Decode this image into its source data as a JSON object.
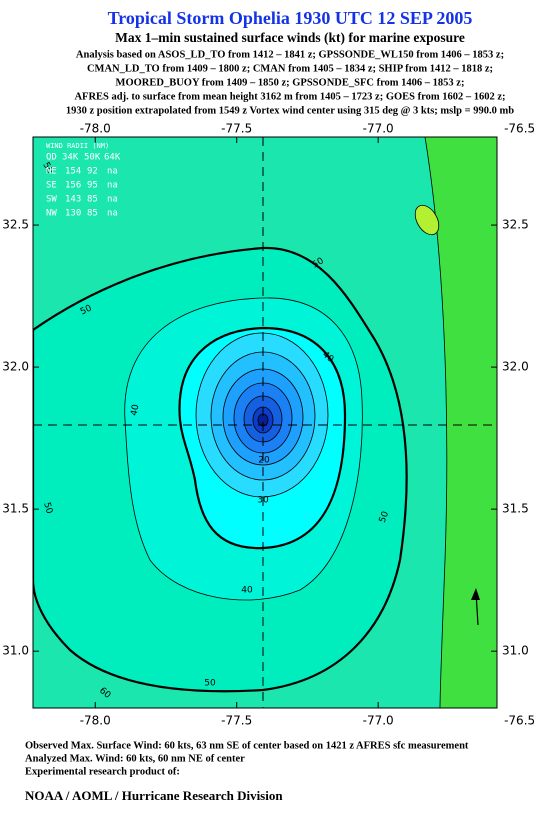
{
  "header": {
    "title": "Tropical Storm Ophelia 1930 UTC 12 SEP 2005",
    "subtitle": "Max 1–min sustained surface winds (kt) for marine exposure",
    "analysis": [
      "Analysis based on  ASOS_LD_TO from 1412 – 1841 z;  GPSSONDE_WL150 from 1406 – 1853 z;",
      "CMAN_LD_TO from 1409 – 1800 z;  CMAN from 1405 – 1834 z;  SHIP from 1412 – 1818 z;",
      "MOORED_BUOY from 1409 – 1850 z;  GPSSONDE_SFC from 1406 – 1853 z;",
      "AFRES adj. to surface from mean height 3162 m from 1405 – 1723 z;  GOES from 1602 – 1602 z;",
      "1930 z position extrapolated from 1549 z Vortex wind center using 315 deg @ 3 kts; mslp = 990.0 mb"
    ]
  },
  "map": {
    "xlim": [
      -78.22,
      -76.58
    ],
    "ylim": [
      30.8,
      32.81
    ],
    "xticks": [
      {
        "value": -78.0,
        "label": "-78.0"
      },
      -77.5,
      {
        "value": -77.0,
        "label": "-77.0"
      },
      -76.5
    ],
    "yticks": [
      {
        "value": 31.0,
        "label": "31.0"
      },
      31.5,
      {
        "value": 32.0,
        "label": "32.0"
      },
      32.5
    ],
    "wind_radii": {
      "title": "WIND RADII (NM)",
      "columns": [
        "QD",
        "34K",
        "50K",
        "64K"
      ],
      "rows": [
        [
          "NE",
          154,
          92,
          "na"
        ],
        [
          "SE",
          156,
          95,
          "na"
        ],
        [
          "SW",
          143,
          85,
          "na"
        ],
        [
          "NW",
          130,
          85,
          "na"
        ]
      ]
    },
    "contour_labels": [
      "50",
      "50",
      "50",
      "40",
      "40",
      "20",
      "30",
      "50",
      "50",
      "40",
      "50",
      "60"
    ]
  },
  "footer": {
    "lines": [
      "Observed Max. Surface Wind: 60 kts, 63 nm SE of center based on 1421 z AFRES sfc measurement",
      "Analyzed Max. Wind: 60 kts, 60 nm NE of center",
      "Experimental research product of:"
    ],
    "credit": "NOAA / AOML / Hurricane Research Division"
  }
}
